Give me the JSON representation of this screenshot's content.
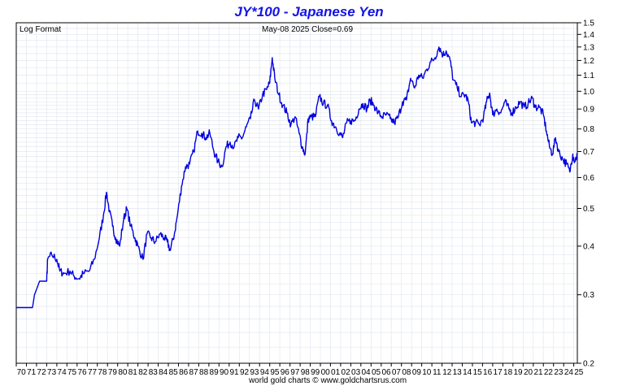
{
  "chart_data": {
    "type": "line",
    "title": "JY*100  -  Japanese Yen",
    "scale_label": "Log Format",
    "info_label": "May-08  2025   Close=0.69",
    "footer": "world gold charts © www.goldchartsrus.com",
    "y_scale": "log",
    "ylim": [
      0.2,
      1.5
    ],
    "xlim": [
      1970,
      2025.35
    ],
    "y_ticks": [
      {
        "value": 1.5,
        "label": "1.5"
      },
      {
        "value": 1.4,
        "label": "1.4"
      },
      {
        "value": 1.3,
        "label": "1.3"
      },
      {
        "value": 1.2,
        "label": "1.2"
      },
      {
        "value": 1.1,
        "label": "1.1"
      },
      {
        "value": 1.0,
        "label": "1.0"
      },
      {
        "value": 0.9,
        "label": "0.9"
      },
      {
        "value": 0.8,
        "label": "0.8"
      },
      {
        "value": 0.7,
        "label": "0.7"
      },
      {
        "value": 0.6,
        "label": "0.6"
      },
      {
        "value": 0.5,
        "label": "0.5"
      },
      {
        "value": 0.4,
        "label": "0.4"
      },
      {
        "value": 0.3,
        "label": "0.3"
      },
      {
        "value": 0.2,
        "label": "0.2"
      }
    ],
    "x_labels": [
      "70",
      "71",
      "72",
      "73",
      "74",
      "75",
      "76",
      "77",
      "78",
      "79",
      "80",
      "81",
      "82",
      "83",
      "84",
      "85",
      "86",
      "87",
      "88",
      "89",
      "90",
      "91",
      "92",
      "93",
      "94",
      "95",
      "96",
      "97",
      "98",
      "99",
      "00",
      "01",
      "02",
      "03",
      "04",
      "05",
      "06",
      "07",
      "08",
      "09",
      "10",
      "11",
      "12",
      "13",
      "14",
      "15",
      "16",
      "17",
      "18",
      "19",
      "20",
      "21",
      "22",
      "23",
      "24",
      "25"
    ],
    "grid": true,
    "line_color": "#0000e0",
    "series": [
      {
        "points": [
          [
            1970.0,
            0.278
          ],
          [
            1971.6,
            0.278
          ],
          [
            1971.8,
            0.3
          ],
          [
            1972.3,
            0.325
          ],
          [
            1973.0,
            0.325
          ],
          [
            1973.1,
            0.37
          ],
          [
            1973.5,
            0.38
          ],
          [
            1974.0,
            0.37
          ],
          [
            1974.3,
            0.345
          ],
          [
            1974.7,
            0.34
          ],
          [
            1975.3,
            0.345
          ],
          [
            1975.7,
            0.335
          ],
          [
            1976.2,
            0.33
          ],
          [
            1976.6,
            0.34
          ],
          [
            1977.2,
            0.345
          ],
          [
            1977.7,
            0.37
          ],
          [
            1978.2,
            0.42
          ],
          [
            1978.6,
            0.48
          ],
          [
            1978.9,
            0.55
          ],
          [
            1979.2,
            0.49
          ],
          [
            1979.5,
            0.45
          ],
          [
            1979.8,
            0.42
          ],
          [
            1980.2,
            0.4
          ],
          [
            1980.6,
            0.47
          ],
          [
            1980.9,
            0.5
          ],
          [
            1981.3,
            0.45
          ],
          [
            1981.7,
            0.42
          ],
          [
            1982.0,
            0.4
          ],
          [
            1982.5,
            0.37
          ],
          [
            1982.9,
            0.43
          ],
          [
            1983.3,
            0.42
          ],
          [
            1983.7,
            0.41
          ],
          [
            1984.2,
            0.43
          ],
          [
            1984.6,
            0.42
          ],
          [
            1984.9,
            0.41
          ],
          [
            1985.2,
            0.39
          ],
          [
            1985.6,
            0.43
          ],
          [
            1985.9,
            0.48
          ],
          [
            1986.3,
            0.57
          ],
          [
            1986.7,
            0.64
          ],
          [
            1987.1,
            0.65
          ],
          [
            1987.5,
            0.7
          ],
          [
            1987.9,
            0.79
          ],
          [
            1988.3,
            0.78
          ],
          [
            1988.7,
            0.76
          ],
          [
            1989.1,
            0.78
          ],
          [
            1989.5,
            0.7
          ],
          [
            1989.9,
            0.66
          ],
          [
            1990.3,
            0.64
          ],
          [
            1990.7,
            0.72
          ],
          [
            1991.1,
            0.74
          ],
          [
            1991.5,
            0.72
          ],
          [
            1991.9,
            0.76
          ],
          [
            1992.3,
            0.76
          ],
          [
            1992.7,
            0.81
          ],
          [
            1993.1,
            0.85
          ],
          [
            1993.5,
            0.95
          ],
          [
            1993.9,
            0.9
          ],
          [
            1994.3,
            0.98
          ],
          [
            1994.7,
            1.01
          ],
          [
            1995.0,
            1.05
          ],
          [
            1995.25,
            1.22
          ],
          [
            1995.5,
            1.08
          ],
          [
            1995.9,
            0.98
          ],
          [
            1996.3,
            0.92
          ],
          [
            1996.7,
            0.88
          ],
          [
            1997.1,
            0.82
          ],
          [
            1997.5,
            0.86
          ],
          [
            1997.9,
            0.78
          ],
          [
            1998.2,
            0.72
          ],
          [
            1998.5,
            0.69
          ],
          [
            1998.8,
            0.85
          ],
          [
            1999.1,
            0.86
          ],
          [
            1999.5,
            0.86
          ],
          [
            1999.9,
            0.97
          ],
          [
            2000.3,
            0.93
          ],
          [
            2000.7,
            0.92
          ],
          [
            2001.1,
            0.84
          ],
          [
            2001.5,
            0.81
          ],
          [
            2001.9,
            0.78
          ],
          [
            2002.2,
            0.76
          ],
          [
            2002.6,
            0.83
          ],
          [
            2003.0,
            0.84
          ],
          [
            2003.4,
            0.84
          ],
          [
            2003.8,
            0.9
          ],
          [
            2004.2,
            0.93
          ],
          [
            2004.6,
            0.9
          ],
          [
            2004.9,
            0.95
          ],
          [
            2005.3,
            0.92
          ],
          [
            2005.7,
            0.88
          ],
          [
            2006.1,
            0.86
          ],
          [
            2006.5,
            0.87
          ],
          [
            2006.9,
            0.85
          ],
          [
            2007.3,
            0.83
          ],
          [
            2007.7,
            0.86
          ],
          [
            2008.1,
            0.94
          ],
          [
            2008.5,
            0.95
          ],
          [
            2008.9,
            1.08
          ],
          [
            2009.3,
            1.02
          ],
          [
            2009.7,
            1.1
          ],
          [
            2010.1,
            1.08
          ],
          [
            2010.5,
            1.14
          ],
          [
            2010.9,
            1.19
          ],
          [
            2011.3,
            1.22
          ],
          [
            2011.7,
            1.3
          ],
          [
            2012.1,
            1.24
          ],
          [
            2012.4,
            1.27
          ],
          [
            2012.8,
            1.2
          ],
          [
            2013.1,
            1.07
          ],
          [
            2013.5,
            1.02
          ],
          [
            2013.9,
            0.97
          ],
          [
            2014.3,
            0.98
          ],
          [
            2014.6,
            0.94
          ],
          [
            2014.9,
            0.83
          ],
          [
            2015.3,
            0.83
          ],
          [
            2015.7,
            0.82
          ],
          [
            2016.1,
            0.86
          ],
          [
            2016.4,
            0.94
          ],
          [
            2016.7,
            0.99
          ],
          [
            2017.0,
            0.87
          ],
          [
            2017.4,
            0.9
          ],
          [
            2017.8,
            0.88
          ],
          [
            2018.2,
            0.94
          ],
          [
            2018.6,
            0.9
          ],
          [
            2018.9,
            0.88
          ],
          [
            2019.3,
            0.91
          ],
          [
            2019.7,
            0.94
          ],
          [
            2020.1,
            0.91
          ],
          [
            2020.5,
            0.93
          ],
          [
            2020.9,
            0.96
          ],
          [
            2021.2,
            0.91
          ],
          [
            2021.6,
            0.91
          ],
          [
            2022.0,
            0.87
          ],
          [
            2022.3,
            0.79
          ],
          [
            2022.6,
            0.72
          ],
          [
            2022.9,
            0.69
          ],
          [
            2023.2,
            0.76
          ],
          [
            2023.5,
            0.7
          ],
          [
            2023.9,
            0.67
          ],
          [
            2024.3,
            0.65
          ],
          [
            2024.6,
            0.62
          ],
          [
            2024.9,
            0.69
          ],
          [
            2025.1,
            0.66
          ],
          [
            2025.35,
            0.69
          ]
        ]
      }
    ]
  }
}
